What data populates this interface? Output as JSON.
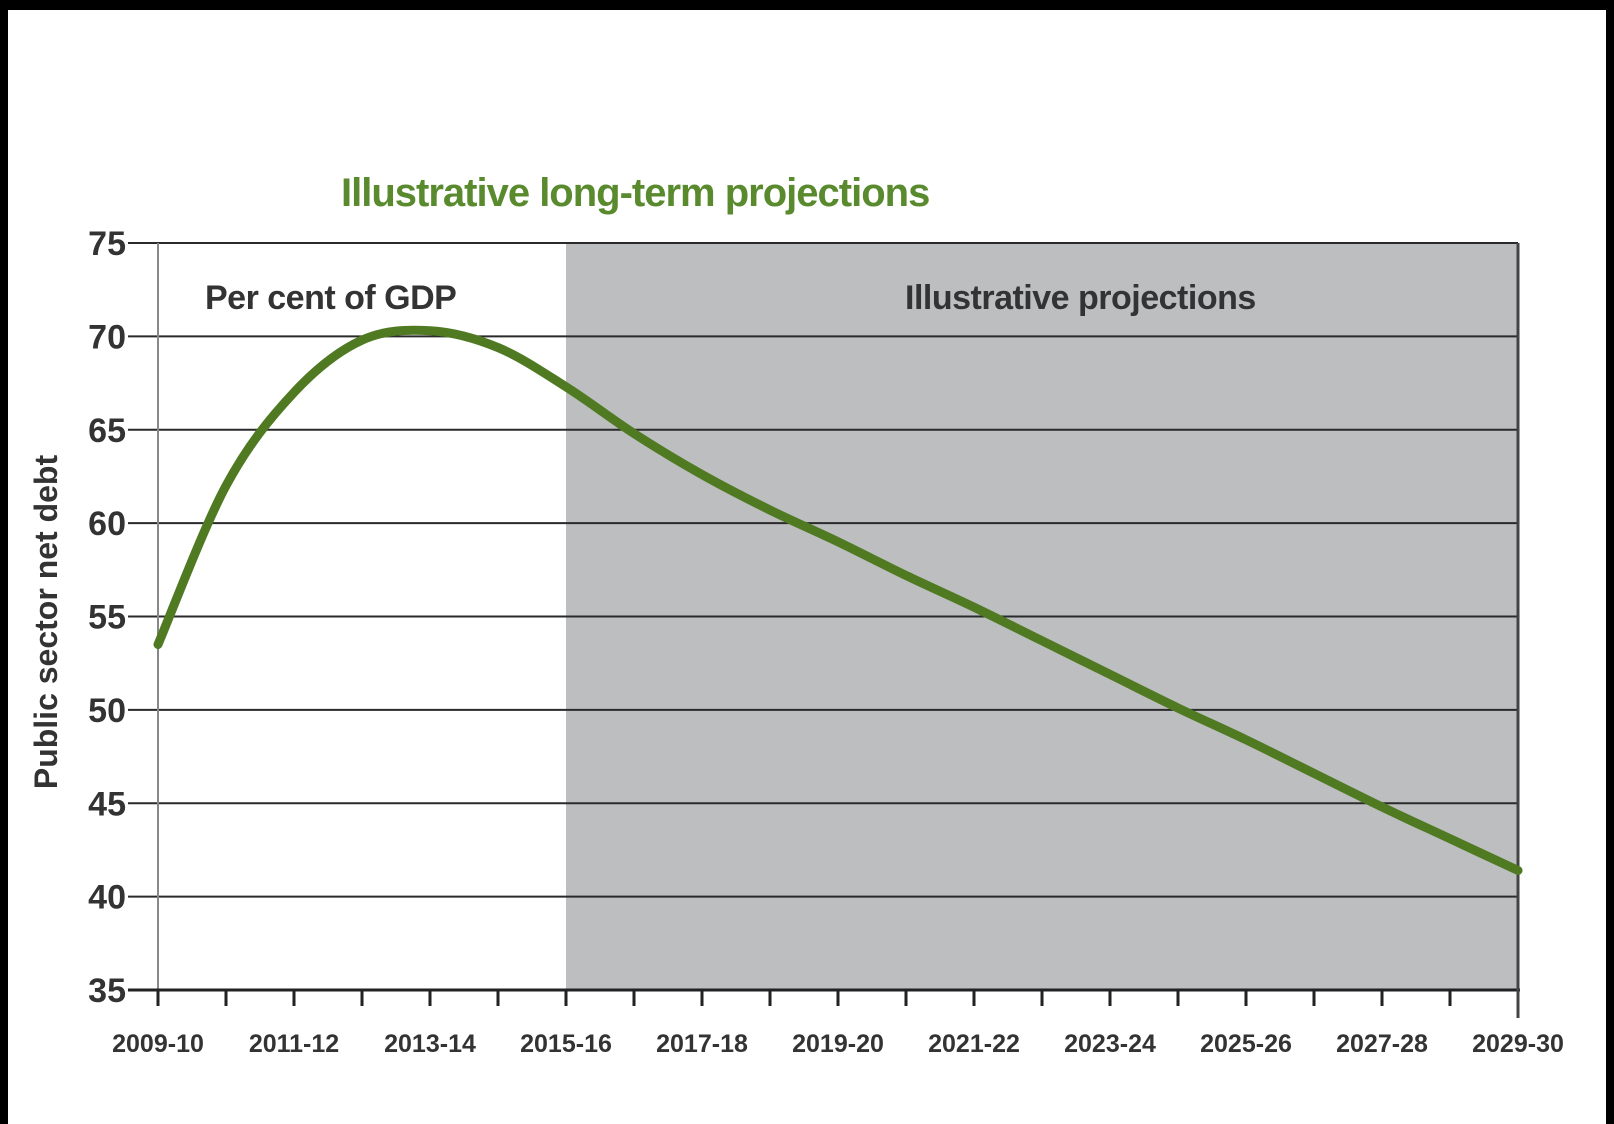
{
  "chart_data": {
    "type": "line",
    "title": "Illustrative long-term projections",
    "ylabel": "Public sector net debt",
    "unit_label": "Per cent of GDP",
    "projection_label": "Illustrative projections",
    "ylim": [
      35,
      75
    ],
    "yticks": [
      35,
      40,
      45,
      50,
      55,
      60,
      65,
      70,
      75
    ],
    "x_tick_labels": [
      "2009-10",
      "2011-12",
      "2013-14",
      "2015-16",
      "2017-18",
      "2019-20",
      "2021-22",
      "2023-24",
      "2025-26",
      "2027-28",
      "2029-30"
    ],
    "x": [
      "2009-10",
      "2010-11",
      "2011-12",
      "2012-13",
      "2013-14",
      "2014-15",
      "2015-16",
      "2016-17",
      "2017-18",
      "2018-19",
      "2019-20",
      "2020-21",
      "2021-22",
      "2022-23",
      "2023-24",
      "2024-25",
      "2025-26",
      "2026-27",
      "2027-28",
      "2028-29",
      "2029-30"
    ],
    "series": [
      {
        "color": "#4f7a22",
        "values": [
          53.5,
          62.0,
          67.0,
          69.8,
          70.3,
          69.4,
          67.3,
          64.8,
          62.6,
          60.7,
          59.0,
          57.2,
          55.5,
          53.7,
          51.9,
          50.1,
          48.4,
          46.6,
          44.8,
          43.1,
          41.4
        ]
      }
    ],
    "projection_start": "2015-16",
    "projection_end": "2029-30",
    "shade_color": "#bcbec0",
    "grid": true
  }
}
